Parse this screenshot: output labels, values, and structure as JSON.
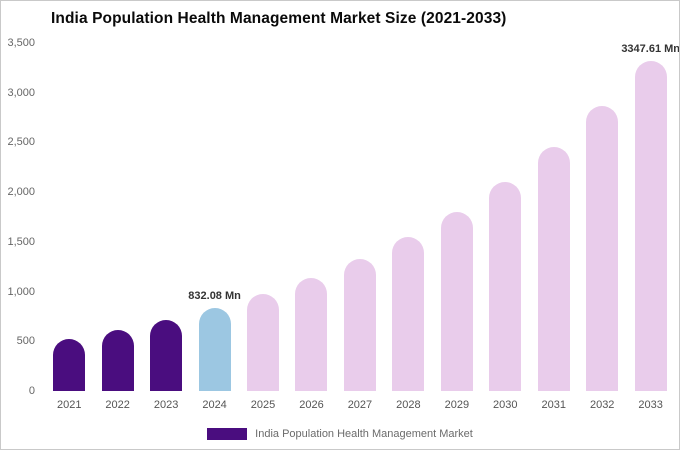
{
  "chart_data": {
    "type": "bar",
    "title": "India Population Health Management Market Size (2021-2033)",
    "unit": "Mn",
    "categories": [
      "2021",
      "2022",
      "2023",
      "2024",
      "2025",
      "2026",
      "2027",
      "2028",
      "2029",
      "2030",
      "2031",
      "2032",
      "2033"
    ],
    "values": [
      523,
      611,
      713,
      832.08,
      971,
      1134,
      1324,
      1545,
      1804,
      2105,
      2458,
      2868,
      3347.61
    ],
    "bar_labels": [
      "",
      "",
      "",
      "832.08 Mn",
      "",
      "",
      "",
      "",
      "",
      "",
      "",
      "",
      "3347.61 Mn"
    ],
    "bar_colors": [
      "#4A0D7F",
      "#4A0D7F",
      "#4A0D7F",
      "#9CC7E2",
      "#E9CCEB",
      "#E9CCEB",
      "#E9CCEB",
      "#E9CCEB",
      "#E9CCEB",
      "#E9CCEB",
      "#E9CCEB",
      "#E9CCEB",
      "#E9CCEB"
    ],
    "ylim": [
      0,
      3500
    ],
    "yticks": [
      "3,500",
      "3,000",
      "2,500",
      "2,000",
      "1,500",
      "1,000",
      "500",
      "0"
    ],
    "grid": false,
    "legend_position": "bottom",
    "legend_label": "India Population Health Management Market",
    "legend_swatch_color": "#4A0D7F"
  }
}
